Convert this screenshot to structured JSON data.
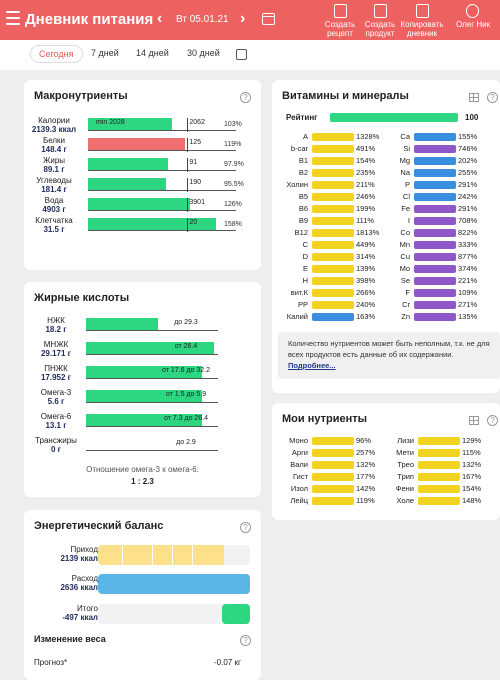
{
  "header": {
    "title": "Дневник питания",
    "date": "Вт 05.01.21",
    "actions": [
      {
        "label": "Создать рецепт"
      },
      {
        "label": "Создать продукт"
      },
      {
        "label": "Копировать дневник"
      },
      {
        "label": "Олег Ник"
      }
    ]
  },
  "tabs": [
    "Сегодня",
    "7 дней",
    "14 дней",
    "30 дней"
  ],
  "colors": {
    "header": "#ee6161",
    "green": "#2dd680",
    "red": "#f07070",
    "yellow": "#f2d31f",
    "blue": "#3a8ee0",
    "purple": "#9057c8",
    "energy_blue": "#5ab4e6",
    "energy_yellow": "#fde08a"
  },
  "macro": {
    "title": "Макронутриенты",
    "rows": [
      {
        "name": "Калории",
        "value": "2139.3 ккал",
        "percent": "103%",
        "fill": 1.03,
        "color": "green",
        "labels": [
          "min 2028",
          "2062"
        ]
      },
      {
        "name": "Белки",
        "value": "148.4 г",
        "percent": "119%",
        "fill": 1.19,
        "color": "red",
        "labels": [
          "125"
        ]
      },
      {
        "name": "Жиры",
        "value": "89.1 г",
        "percent": "97.9%",
        "fill": 0.979,
        "color": "green",
        "labels": [
          "91"
        ]
      },
      {
        "name": "Углеводы",
        "value": "181.4 г",
        "percent": "95.5%",
        "fill": 0.955,
        "color": "green",
        "labels": [
          "190"
        ]
      },
      {
        "name": "Вода",
        "value": "4903 г",
        "percent": "126%",
        "fill": 1.26,
        "color": "green",
        "labels": [
          "3901"
        ]
      },
      {
        "name": "Клетчатка",
        "value": "31.5 г",
        "percent": "158%",
        "fill": 1.58,
        "color": "green",
        "labels": [
          "20"
        ]
      }
    ]
  },
  "fats": {
    "title": "Жирные кислоты",
    "rows": [
      {
        "name": "НЖК",
        "value": "18.2 г",
        "fill": 0.62,
        "range": "до 29.3"
      },
      {
        "name": "МНЖК",
        "value": "29.171 г",
        "fill": 1.1,
        "range": "от 26.4"
      },
      {
        "name": "ПНЖК",
        "value": "17.952 г",
        "fill": 1.0,
        "range": "от 17.6 до 32.2"
      },
      {
        "name": "Омега-3",
        "value": "5.6 г",
        "fill": 1.0,
        "range": "от 1.5 до 5.9"
      },
      {
        "name": "Омега-6",
        "value": "13.1 г",
        "fill": 1.0,
        "range": "от 7.3 до 26.4"
      },
      {
        "name": "Трансжиры",
        "value": "0 г",
        "fill": 0,
        "range": "до 2.9"
      }
    ],
    "ratio_label": "Отношение омега-3 к омега-6:",
    "ratio_value": "1 : 2.3"
  },
  "energy": {
    "title": "Энергетический баланс",
    "rows": [
      {
        "name": "Приход",
        "value": "2139 ккал"
      },
      {
        "name": "Расход",
        "value": "2636 ккал"
      },
      {
        "name": "Итого",
        "value": "-497 ккал"
      }
    ],
    "weight_title": "Изменение веса",
    "forecast_label": "Прогноз*",
    "forecast_value": "-0.07 кг"
  },
  "vitamins": {
    "title": "Витамины и минералы",
    "rating_label": "Рейтинг",
    "rating_value": "100",
    "left": [
      {
        "name": "A",
        "pct": "1328%",
        "color": "yellow"
      },
      {
        "name": "b-car",
        "pct": "491%",
        "color": "yellow"
      },
      {
        "name": "B1",
        "pct": "154%",
        "color": "yellow"
      },
      {
        "name": "B2",
        "pct": "235%",
        "color": "yellow"
      },
      {
        "name": "Холин",
        "pct": "211%",
        "color": "yellow"
      },
      {
        "name": "B5",
        "pct": "246%",
        "color": "yellow"
      },
      {
        "name": "B6",
        "pct": "199%",
        "color": "yellow"
      },
      {
        "name": "B9",
        "pct": "111%",
        "color": "yellow"
      },
      {
        "name": "B12",
        "pct": "1813%",
        "color": "yellow"
      },
      {
        "name": "C",
        "pct": "449%",
        "color": "yellow"
      },
      {
        "name": "D",
        "pct": "314%",
        "color": "yellow"
      },
      {
        "name": "E",
        "pct": "139%",
        "color": "yellow"
      },
      {
        "name": "H",
        "pct": "398%",
        "color": "yellow"
      },
      {
        "name": "вит.К",
        "pct": "266%",
        "color": "yellow"
      },
      {
        "name": "PP",
        "pct": "240%",
        "color": "yellow"
      },
      {
        "name": "Калий",
        "pct": "163%",
        "color": "blue"
      }
    ],
    "right": [
      {
        "name": "Ca",
        "pct": "155%",
        "color": "blue"
      },
      {
        "name": "Si",
        "pct": "746%",
        "color": "purple"
      },
      {
        "name": "Mg",
        "pct": "202%",
        "color": "blue"
      },
      {
        "name": "Na",
        "pct": "255%",
        "color": "blue"
      },
      {
        "name": "P",
        "pct": "291%",
        "color": "blue"
      },
      {
        "name": "Cl",
        "pct": "242%",
        "color": "blue"
      },
      {
        "name": "Fe",
        "pct": "291%",
        "color": "purple"
      },
      {
        "name": "I",
        "pct": "708%",
        "color": "purple"
      },
      {
        "name": "Co",
        "pct": "822%",
        "color": "purple"
      },
      {
        "name": "Mn",
        "pct": "333%",
        "color": "purple"
      },
      {
        "name": "Cu",
        "pct": "877%",
        "color": "purple"
      },
      {
        "name": "Mo",
        "pct": "374%",
        "color": "purple"
      },
      {
        "name": "Se",
        "pct": "221%",
        "color": "purple"
      },
      {
        "name": "F",
        "pct": "109%",
        "color": "purple"
      },
      {
        "name": "Cr",
        "pct": "271%",
        "color": "purple"
      },
      {
        "name": "Zn",
        "pct": "135%",
        "color": "purple"
      }
    ],
    "note": "Количество нутриентов может быть неполным, т.к. не для всех продуктов есть данные об их содержании.",
    "note_link": "Подробнее..."
  },
  "my_nutrients": {
    "title": "Мои нутриенты",
    "left": [
      {
        "name": "Моно",
        "pct": "96%"
      },
      {
        "name": "Арги",
        "pct": "257%"
      },
      {
        "name": "Вали",
        "pct": "132%"
      },
      {
        "name": "Гист",
        "pct": "177%"
      },
      {
        "name": "Изол",
        "pct": "142%"
      },
      {
        "name": "Лейц",
        "pct": "119%"
      }
    ],
    "right": [
      {
        "name": "Лизи",
        "pct": "129%"
      },
      {
        "name": "Мети",
        "pct": "115%"
      },
      {
        "name": "Трео",
        "pct": "132%"
      },
      {
        "name": "Трип",
        "pct": "167%"
      },
      {
        "name": "Фени",
        "pct": "154%"
      },
      {
        "name": "Холе",
        "pct": "148%"
      }
    ]
  }
}
